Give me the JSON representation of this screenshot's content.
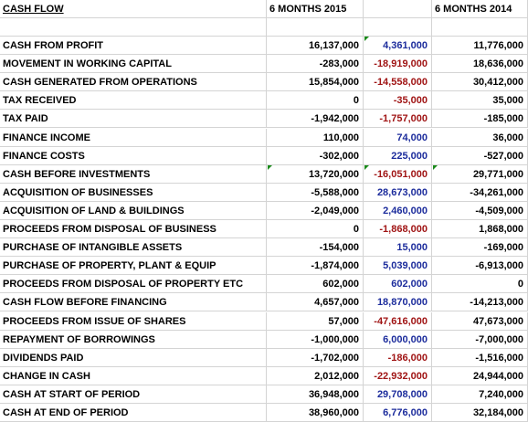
{
  "header": {
    "title": "CASH FLOW",
    "col_2015": "6 MONTHS 2015",
    "col_b": "",
    "col_2014": "6 MONTHS 2014"
  },
  "colors": {
    "positive_diff": "#1c2c9c",
    "negative_diff": "#a01414",
    "comment_marker": "#1a8a1a"
  },
  "rows": [
    {
      "label": "CASH FROM PROFIT",
      "m2015": "16,137,000",
      "diff": "4,361,000",
      "diff_sign": "pos",
      "m2014": "11,776,000",
      "bold": false
    },
    {
      "label": "MOVEMENT IN WORKING CAPITAL",
      "m2015": "-283,000",
      "diff": "-18,919,000",
      "diff_sign": "neg",
      "m2014": "18,636,000",
      "bold": false
    },
    {
      "label": "CASH GENERATED FROM OPERATIONS",
      "m2015": "15,854,000",
      "diff": "-14,558,000",
      "diff_sign": "neg",
      "m2014": "30,412,000",
      "bold": true
    },
    {
      "label": "TAX RECEIVED",
      "m2015": "0",
      "diff": "-35,000",
      "diff_sign": "neg",
      "m2014": "35,000",
      "bold": false
    },
    {
      "label": "TAX PAID",
      "m2015": "-1,942,000",
      "diff": "-1,757,000",
      "diff_sign": "neg",
      "m2014": "-185,000",
      "bold": false
    },
    {
      "label": "FINANCE INCOME",
      "m2015": "110,000",
      "diff": "74,000",
      "diff_sign": "pos",
      "m2014": "36,000",
      "bold": false
    },
    {
      "label": "FINANCE COSTS",
      "m2015": "-302,000",
      "diff": "225,000",
      "diff_sign": "pos",
      "m2014": "-527,000",
      "bold": false
    },
    {
      "label": "CASH BEFORE INVESTMENTS",
      "m2015": "13,720,000",
      "diff": "-16,051,000",
      "diff_sign": "neg",
      "m2014": "29,771,000",
      "bold": true
    },
    {
      "label": "ACQUISITION OF BUSINESSES",
      "m2015": "-5,588,000",
      "diff": "28,673,000",
      "diff_sign": "pos",
      "m2014": "-34,261,000",
      "bold": false
    },
    {
      "label": "ACQUISITION OF LAND & BUILDINGS",
      "m2015": "-2,049,000",
      "diff": "2,460,000",
      "diff_sign": "pos",
      "m2014": "-4,509,000",
      "bold": false
    },
    {
      "label": "PROCEEDS FROM DISPOSAL OF BUSINESS",
      "m2015": "0",
      "diff": "-1,868,000",
      "diff_sign": "neg",
      "m2014": "1,868,000",
      "bold": false
    },
    {
      "label": "PURCHASE OF INTANGIBLE ASSETS",
      "m2015": "-154,000",
      "diff": "15,000",
      "diff_sign": "pos",
      "m2014": "-169,000",
      "bold": false
    },
    {
      "label": "PURCHASE OF PROPERTY, PLANT & EQUIP",
      "m2015": "-1,874,000",
      "diff": "5,039,000",
      "diff_sign": "pos",
      "m2014": "-6,913,000",
      "bold": false
    },
    {
      "label": "PROCEEDS FROM DISPOSAL OF PROPERTY ETC",
      "m2015": "602,000",
      "diff": "602,000",
      "diff_sign": "pos",
      "m2014": "0",
      "bold": false
    },
    {
      "label": "CASH FLOW BEFORE FINANCING",
      "m2015": "4,657,000",
      "diff": "18,870,000",
      "diff_sign": "pos",
      "m2014": "-14,213,000",
      "bold": true
    },
    {
      "label": "PROCEEDS FROM ISSUE OF SHARES",
      "m2015": "57,000",
      "diff": "-47,616,000",
      "diff_sign": "neg",
      "m2014": "47,673,000",
      "bold": false
    },
    {
      "label": "REPAYMENT OF BORROWINGS",
      "m2015": "-1,000,000",
      "diff": "6,000,000",
      "diff_sign": "pos",
      "m2014": "-7,000,000",
      "bold": false
    },
    {
      "label": "DIVIDENDS PAID",
      "m2015": "-1,702,000",
      "diff": "-186,000",
      "diff_sign": "neg",
      "m2014": "-1,516,000",
      "bold": false
    },
    {
      "label": "CHANGE IN CASH",
      "m2015": "2,012,000",
      "diff": "-22,932,000",
      "diff_sign": "neg",
      "m2014": "24,944,000",
      "bold": true
    },
    {
      "label": "CASH AT START OF PERIOD",
      "m2015": "36,948,000",
      "diff": "29,708,000",
      "diff_sign": "pos",
      "m2014": "7,240,000",
      "bold": false
    },
    {
      "label": "CASH AT END OF PERIOD",
      "m2015": "38,960,000",
      "diff": "6,776,000",
      "diff_sign": "pos",
      "m2014": "32,184,000",
      "bold": false
    }
  ]
}
